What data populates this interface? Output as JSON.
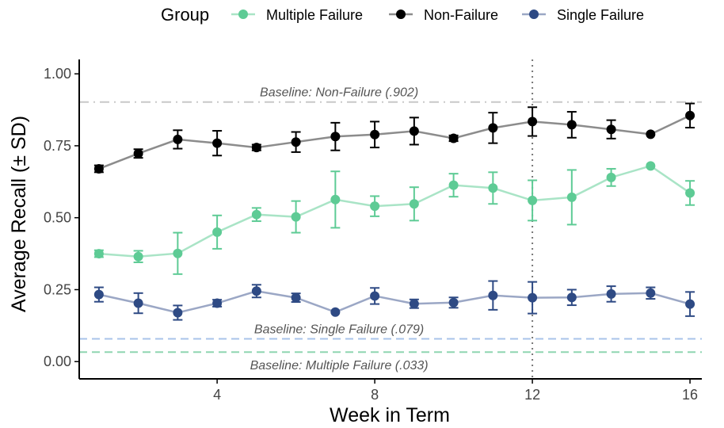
{
  "chart_data": {
    "type": "line",
    "xlabel": "Week in Term",
    "ylabel": "Average Recall (± SD)",
    "xlim": [
      0.5,
      16.3
    ],
    "ylim": [
      -0.06,
      1.05
    ],
    "x_ticks": [
      4,
      8,
      12,
      16
    ],
    "y_ticks": [
      0.0,
      0.25,
      0.5,
      0.75,
      1.0
    ],
    "x_tick_labels": [
      "4",
      "8",
      "12",
      "16"
    ],
    "y_tick_labels": [
      "0.00",
      "0.25",
      "0.50",
      "0.75",
      "1.00"
    ],
    "grid": false,
    "legend": {
      "title": "Group",
      "placement": "top",
      "entries": [
        "Multiple Failure",
        "Non-Failure",
        "Single Failure"
      ]
    },
    "x": [
      1,
      2,
      3,
      4,
      5,
      6,
      7,
      8,
      9,
      10,
      11,
      12,
      13,
      14,
      15,
      16
    ],
    "series": [
      {
        "name": "Multiple Failure",
        "point_color": "#5ecb95",
        "line_color": "#a9e4c6",
        "values": [
          0.375,
          0.365,
          0.376,
          0.45,
          0.511,
          0.503,
          0.563,
          0.54,
          0.548,
          0.613,
          0.603,
          0.56,
          0.571,
          0.64,
          0.68,
          0.586
        ],
        "sd": [
          0.012,
          0.02,
          0.072,
          0.058,
          0.023,
          0.055,
          0.098,
          0.035,
          0.058,
          0.04,
          0.055,
          0.07,
          0.095,
          0.03,
          0.0,
          0.042
        ]
      },
      {
        "name": "Non-Failure",
        "point_color": "#000000",
        "line_color": "#8c8c8c",
        "values": [
          0.67,
          0.723,
          0.772,
          0.759,
          0.744,
          0.763,
          0.782,
          0.789,
          0.801,
          0.776,
          0.812,
          0.834,
          0.823,
          0.807,
          0.79,
          0.855
        ],
        "sd": [
          0.012,
          0.015,
          0.032,
          0.043,
          0.01,
          0.035,
          0.048,
          0.045,
          0.047,
          0.01,
          0.053,
          0.05,
          0.045,
          0.032,
          0.0,
          0.042
        ]
      },
      {
        "name": "Single Failure",
        "point_color": "#2e4a84",
        "line_color": "#9ba7c5",
        "values": [
          0.233,
          0.203,
          0.17,
          0.203,
          0.245,
          0.222,
          0.172,
          0.228,
          0.201,
          0.205,
          0.23,
          0.222,
          0.223,
          0.235,
          0.238,
          0.2
        ],
        "sd": [
          0.025,
          0.035,
          0.025,
          0.012,
          0.022,
          0.015,
          0.0,
          0.028,
          0.015,
          0.018,
          0.05,
          0.055,
          0.027,
          0.027,
          0.02,
          0.042
        ]
      }
    ],
    "reference_lines": [
      {
        "y": 0.902,
        "label": "Baseline: Non-Failure (.902)",
        "color": "#c8c8c8",
        "style": "dash-dot",
        "label_x": 8
      },
      {
        "y": 0.079,
        "label": "Baseline: Single Failure (.079)",
        "color": "#a9c3ea",
        "style": "dashed",
        "label_x": 8
      },
      {
        "y": 0.033,
        "label": "Baseline: Multiple Failure (.033)",
        "color": "#8fd6b1",
        "style": "dashed",
        "label_x": 8
      }
    ],
    "vertical_line": {
      "x": 12,
      "color": "#777777",
      "style": "dotted"
    }
  }
}
